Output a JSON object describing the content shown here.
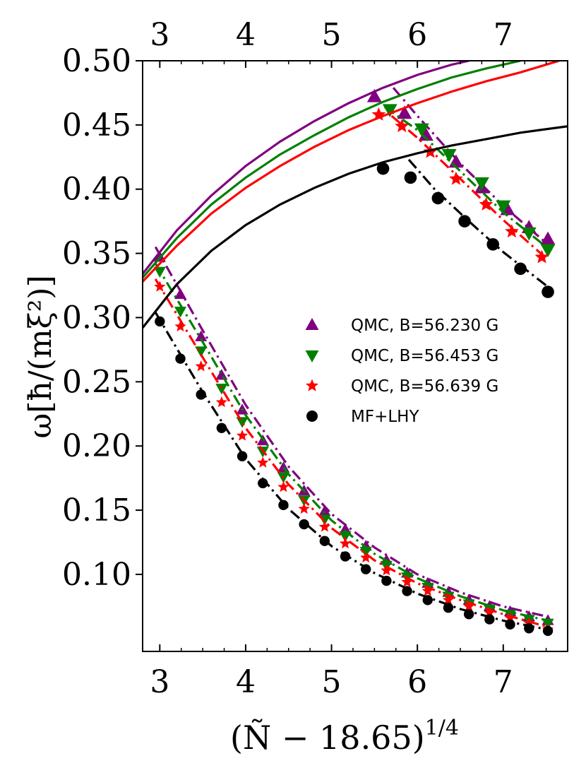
{
  "chart_data": {
    "type": "scatter",
    "title": "",
    "xlabel": "(Ñ − 18.65)",
    "xlabel_exponent": "1/4",
    "ylabel": "ω[ħ/(mξ²)]",
    "xlim": [
      2.8,
      7.75
    ],
    "ylim": [
      0.04,
      0.5
    ],
    "xticks": [
      3,
      4,
      5,
      6,
      7
    ],
    "xtick_labels": [
      "3",
      "4",
      "5",
      "6",
      "7"
    ],
    "yticks": [
      0.1,
      0.15,
      0.2,
      0.25,
      0.3,
      0.35,
      0.4,
      0.45,
      0.5
    ],
    "ytick_labels": [
      "0.10",
      "0.15",
      "0.20",
      "0.25",
      "0.30",
      "0.35",
      "0.40",
      "0.45",
      "0.50"
    ],
    "top_axis_mirrored": true,
    "legend_position": "center-right",
    "series": [
      {
        "name": "QMC, B=56.230 G",
        "color": "#800080",
        "marker": "triangle-up",
        "lower_points": [
          [
            3.0,
            0.347
          ],
          [
            3.24,
            0.318
          ],
          [
            3.48,
            0.285
          ],
          [
            3.72,
            0.255
          ],
          [
            3.96,
            0.228
          ],
          [
            4.2,
            0.204
          ],
          [
            4.44,
            0.183
          ],
          [
            4.68,
            0.165
          ],
          [
            4.92,
            0.149
          ],
          [
            5.16,
            0.135
          ],
          [
            5.4,
            0.122
          ],
          [
            5.64,
            0.111
          ],
          [
            5.88,
            0.101
          ],
          [
            6.12,
            0.093
          ],
          [
            6.36,
            0.086
          ],
          [
            6.6,
            0.08
          ],
          [
            6.84,
            0.075
          ],
          [
            7.08,
            0.071
          ],
          [
            7.3,
            0.067
          ],
          [
            7.52,
            0.064
          ]
        ],
        "upper_points": [
          [
            5.5,
            0.472
          ],
          [
            5.85,
            0.459
          ],
          [
            6.1,
            0.442
          ],
          [
            6.45,
            0.421
          ],
          [
            6.75,
            0.401
          ],
          [
            7.05,
            0.384
          ],
          [
            7.3,
            0.37
          ],
          [
            7.52,
            0.361
          ]
        ],
        "dashdot_fit": [
          [
            2.95,
            0.355
          ],
          [
            3.5,
            0.29
          ],
          [
            4.0,
            0.232
          ],
          [
            4.5,
            0.184
          ],
          [
            5.0,
            0.147
          ],
          [
            5.5,
            0.121
          ],
          [
            6.0,
            0.1
          ],
          [
            6.5,
            0.086
          ],
          [
            7.0,
            0.075
          ],
          [
            7.52,
            0.067
          ]
        ],
        "upper_fit": [
          [
            5.72,
            0.479
          ],
          [
            6.0,
            0.457
          ],
          [
            6.5,
            0.42
          ],
          [
            7.0,
            0.387
          ],
          [
            7.52,
            0.357
          ]
        ],
        "solid_curve": [
          [
            2.8,
            0.334
          ],
          [
            3.2,
            0.368
          ],
          [
            3.6,
            0.395
          ],
          [
            4.0,
            0.418
          ],
          [
            4.4,
            0.437
          ],
          [
            4.8,
            0.453
          ],
          [
            5.2,
            0.467
          ],
          [
            5.6,
            0.479
          ],
          [
            6.0,
            0.489
          ],
          [
            6.4,
            0.497
          ],
          [
            6.6,
            0.5
          ]
        ]
      },
      {
        "name": "QMC, B=56.453 G",
        "color": "#008000",
        "marker": "triangle-down",
        "lower_points": [
          [
            3.0,
            0.336
          ],
          [
            3.24,
            0.305
          ],
          [
            3.48,
            0.274
          ],
          [
            3.72,
            0.245
          ],
          [
            3.96,
            0.219
          ],
          [
            4.2,
            0.196
          ],
          [
            4.44,
            0.176
          ],
          [
            4.68,
            0.158
          ],
          [
            4.92,
            0.143
          ],
          [
            5.16,
            0.13
          ],
          [
            5.4,
            0.118
          ],
          [
            5.64,
            0.107
          ],
          [
            5.88,
            0.098
          ],
          [
            6.12,
            0.09
          ],
          [
            6.36,
            0.083
          ],
          [
            6.6,
            0.077
          ],
          [
            6.84,
            0.073
          ],
          [
            7.08,
            0.069
          ],
          [
            7.3,
            0.065
          ],
          [
            7.52,
            0.062
          ]
        ],
        "upper_points": [
          [
            5.68,
            0.462
          ],
          [
            6.05,
            0.447
          ],
          [
            6.37,
            0.427
          ],
          [
            6.75,
            0.405
          ],
          [
            7.0,
            0.387
          ],
          [
            7.3,
            0.366
          ],
          [
            7.52,
            0.353
          ]
        ],
        "dashdot_fit": [
          [
            2.95,
            0.342
          ],
          [
            3.5,
            0.281
          ],
          [
            4.0,
            0.224
          ],
          [
            4.5,
            0.178
          ],
          [
            5.0,
            0.142
          ],
          [
            5.5,
            0.116
          ],
          [
            6.0,
            0.097
          ],
          [
            6.5,
            0.083
          ],
          [
            7.0,
            0.072
          ],
          [
            7.52,
            0.064
          ]
        ],
        "upper_fit": [
          [
            5.62,
            0.464
          ],
          [
            6.0,
            0.446
          ],
          [
            6.5,
            0.414
          ],
          [
            7.0,
            0.382
          ],
          [
            7.52,
            0.354
          ]
        ],
        "solid_curve": [
          [
            2.8,
            0.331
          ],
          [
            3.2,
            0.362
          ],
          [
            3.6,
            0.388
          ],
          [
            4.0,
            0.409
          ],
          [
            4.4,
            0.427
          ],
          [
            4.8,
            0.442
          ],
          [
            5.2,
            0.456
          ],
          [
            5.6,
            0.468
          ],
          [
            6.0,
            0.478
          ],
          [
            6.4,
            0.487
          ],
          [
            6.8,
            0.494
          ],
          [
            7.2,
            0.5
          ]
        ]
      },
      {
        "name": "QMC, B=56.639 G",
        "color": "#ff0000",
        "marker": "star",
        "lower_points": [
          [
            3.0,
            0.324
          ],
          [
            3.24,
            0.293
          ],
          [
            3.48,
            0.262
          ],
          [
            3.72,
            0.234
          ],
          [
            3.96,
            0.208
          ],
          [
            4.2,
            0.187
          ],
          [
            4.44,
            0.168
          ],
          [
            4.68,
            0.151
          ],
          [
            4.92,
            0.137
          ],
          [
            5.16,
            0.124
          ],
          [
            5.4,
            0.113
          ],
          [
            5.64,
            0.103
          ],
          [
            5.88,
            0.094
          ],
          [
            6.12,
            0.087
          ],
          [
            6.36,
            0.08
          ],
          [
            6.6,
            0.075
          ],
          [
            6.84,
            0.07
          ],
          [
            7.08,
            0.066
          ],
          [
            7.3,
            0.062
          ],
          [
            7.52,
            0.057
          ]
        ],
        "upper_points": [
          [
            5.55,
            0.458
          ],
          [
            5.82,
            0.449
          ],
          [
            6.15,
            0.429
          ],
          [
            6.45,
            0.408
          ],
          [
            6.8,
            0.388
          ],
          [
            7.1,
            0.367
          ],
          [
            7.45,
            0.347
          ]
        ],
        "dashdot_fit": [
          [
            2.95,
            0.33
          ],
          [
            3.5,
            0.269
          ],
          [
            4.0,
            0.214
          ],
          [
            4.5,
            0.17
          ],
          [
            5.0,
            0.136
          ],
          [
            5.5,
            0.111
          ],
          [
            6.0,
            0.093
          ],
          [
            6.5,
            0.08
          ],
          [
            7.0,
            0.069
          ],
          [
            7.52,
            0.059
          ]
        ],
        "upper_fit": [
          [
            5.7,
            0.457
          ],
          [
            6.0,
            0.44
          ],
          [
            6.5,
            0.408
          ],
          [
            7.0,
            0.376
          ],
          [
            7.52,
            0.345
          ]
        ],
        "solid_curve": [
          [
            2.8,
            0.328
          ],
          [
            3.2,
            0.356
          ],
          [
            3.6,
            0.381
          ],
          [
            4.0,
            0.401
          ],
          [
            4.4,
            0.418
          ],
          [
            4.8,
            0.433
          ],
          [
            5.2,
            0.446
          ],
          [
            5.6,
            0.457
          ],
          [
            6.0,
            0.467
          ],
          [
            6.4,
            0.476
          ],
          [
            6.8,
            0.484
          ],
          [
            7.2,
            0.491
          ],
          [
            7.6,
            0.499
          ],
          [
            7.65,
            0.5
          ]
        ]
      },
      {
        "name": "MF+LHY",
        "color": "#000000",
        "marker": "circle",
        "lower_points": [
          [
            3.0,
            0.297
          ],
          [
            3.24,
            0.268
          ],
          [
            3.48,
            0.24
          ],
          [
            3.72,
            0.214
          ],
          [
            3.96,
            0.192
          ],
          [
            4.2,
            0.171
          ],
          [
            4.44,
            0.154
          ],
          [
            4.68,
            0.139
          ],
          [
            4.92,
            0.126
          ],
          [
            5.16,
            0.114
          ],
          [
            5.4,
            0.104
          ],
          [
            5.64,
            0.095
          ],
          [
            5.88,
            0.087
          ],
          [
            6.12,
            0.08
          ],
          [
            6.36,
            0.074
          ],
          [
            6.6,
            0.069
          ],
          [
            6.84,
            0.065
          ],
          [
            7.08,
            0.061
          ],
          [
            7.3,
            0.058
          ],
          [
            7.52,
            0.056
          ]
        ],
        "upper_points": [
          [
            5.6,
            0.416
          ],
          [
            5.92,
            0.409
          ],
          [
            6.24,
            0.393
          ],
          [
            6.55,
            0.375
          ],
          [
            6.88,
            0.357
          ],
          [
            7.2,
            0.338
          ],
          [
            7.52,
            0.32
          ]
        ],
        "dashdot_fit": [
          [
            2.95,
            0.304
          ],
          [
            3.5,
            0.242
          ],
          [
            4.0,
            0.19
          ],
          [
            4.5,
            0.151
          ],
          [
            5.0,
            0.122
          ],
          [
            5.5,
            0.101
          ],
          [
            6.0,
            0.085
          ],
          [
            6.5,
            0.073
          ],
          [
            7.0,
            0.064
          ],
          [
            7.52,
            0.057
          ]
        ],
        "upper_fit": [
          [
            5.9,
            0.423
          ],
          [
            6.2,
            0.4
          ],
          [
            6.6,
            0.375
          ],
          [
            7.0,
            0.351
          ],
          [
            7.52,
            0.324
          ]
        ],
        "solid_curve": [
          [
            2.8,
            0.292
          ],
          [
            3.2,
            0.326
          ],
          [
            3.6,
            0.352
          ],
          [
            4.0,
            0.372
          ],
          [
            4.4,
            0.388
          ],
          [
            4.8,
            0.401
          ],
          [
            5.2,
            0.412
          ],
          [
            5.6,
            0.421
          ],
          [
            6.0,
            0.428
          ],
          [
            6.4,
            0.434
          ],
          [
            6.8,
            0.439
          ],
          [
            7.2,
            0.444
          ],
          [
            7.75,
            0.449
          ]
        ]
      }
    ]
  }
}
